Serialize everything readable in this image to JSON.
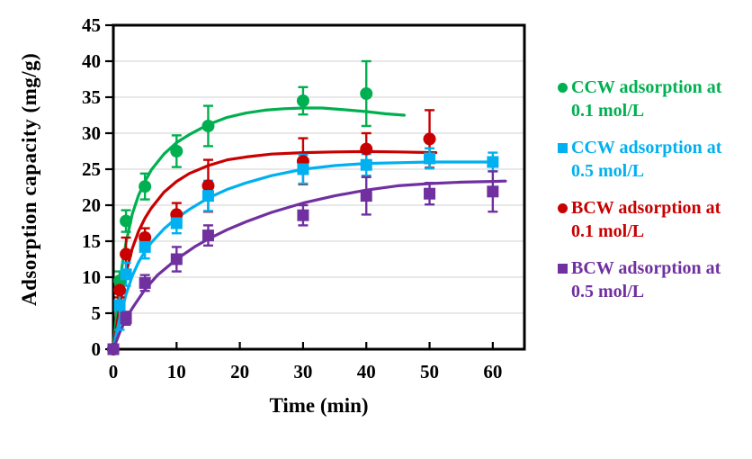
{
  "figure": {
    "background": "#FFFFFF",
    "axis_color": "#000000",
    "grid_color": "#D9D9D9"
  },
  "chart_data": {
    "type": "scatter",
    "title": "",
    "xlabel": "Time (min)",
    "ylabel": "Adsorption capacity (mg/g)",
    "xlim": [
      0,
      65
    ],
    "ylim": [
      0,
      45
    ],
    "x_ticks": [
      0,
      10,
      20,
      30,
      40,
      50,
      60
    ],
    "y_ticks": [
      0,
      5,
      10,
      15,
      20,
      25,
      30,
      35,
      40,
      45
    ],
    "grid": "horizontal-only",
    "legend_position": "right-outside",
    "error_bars": "vertical",
    "legend_order": [
      0,
      2,
      1,
      3
    ],
    "series": [
      {
        "name": "CCW adsorption at 0.1 mol/L",
        "legend_lines": [
          "CCW adsorption at",
          "0.1 mol/L"
        ],
        "color": "#00B050",
        "marker": "circle",
        "x": [
          0,
          1,
          2,
          5,
          10,
          15,
          30,
          40
        ],
        "y": [
          0,
          9.5,
          17.8,
          22.6,
          27.5,
          31.0,
          34.5,
          35.5
        ],
        "yerr": [
          0,
          1.3,
          1.5,
          1.8,
          2.2,
          2.8,
          1.9,
          4.5
        ],
        "fit": {
          "x": [
            0,
            0.5,
            1,
            1.5,
            2,
            3,
            4,
            5,
            6,
            8,
            10,
            12,
            15,
            18,
            21,
            24,
            27,
            30,
            33,
            36,
            40,
            43,
            46
          ],
          "y": [
            0,
            4.8,
            9.0,
            12.2,
            14.8,
            18.8,
            21.4,
            23.3,
            24.9,
            27.1,
            28.7,
            29.8,
            31.2,
            32.2,
            32.8,
            33.2,
            33.4,
            33.5,
            33.5,
            33.3,
            33.0,
            32.7,
            32.5
          ]
        }
      },
      {
        "name": "BCW adsorption at 0.1 mol/L",
        "legend_lines": [
          "BCW adsorption at",
          "0.1 mol/L"
        ],
        "color": "#C80000",
        "marker": "circle",
        "x": [
          0,
          1,
          2,
          5,
          10,
          15,
          30,
          40,
          50
        ],
        "y": [
          0,
          8.2,
          13.2,
          15.5,
          18.7,
          22.7,
          26.1,
          27.8,
          29.2
        ],
        "yerr": [
          0,
          1.0,
          2.3,
          1.3,
          1.6,
          3.6,
          3.2,
          2.2,
          4.0
        ],
        "fit": {
          "x": [
            0,
            0.5,
            1,
            1.5,
            2,
            3,
            4,
            5,
            6,
            8,
            10,
            12,
            15,
            18,
            21,
            25,
            30,
            35,
            40,
            45,
            51
          ],
          "y": [
            0,
            3.0,
            5.8,
            8.4,
            10.6,
            14.0,
            16.4,
            18.2,
            19.6,
            21.8,
            23.3,
            24.4,
            25.5,
            26.3,
            26.7,
            27.1,
            27.3,
            27.4,
            27.45,
            27.4,
            27.3
          ]
        }
      },
      {
        "name": "CCW adsorption at 0.5 mol/L",
        "legend_lines": [
          "CCW adsorption at",
          "0.5 mol/L"
        ],
        "color": "#00B0F0",
        "marker": "square",
        "x": [
          0,
          1,
          2,
          5,
          10,
          15,
          30,
          40,
          50,
          60
        ],
        "y": [
          0,
          6.1,
          10.4,
          14.2,
          17.5,
          21.3,
          25.0,
          25.6,
          26.5,
          26.0
        ],
        "yerr": [
          0,
          3.4,
          1.6,
          1.6,
          1.4,
          2.1,
          2.0,
          1.5,
          1.4,
          1.3
        ],
        "fit": {
          "x": [
            0,
            0.5,
            1,
            2,
            3,
            4,
            5,
            6,
            8,
            10,
            12,
            15,
            18,
            21,
            25,
            30,
            35,
            40,
            45,
            50,
            55,
            60
          ],
          "y": [
            0,
            2.2,
            4.2,
            7.6,
            10.2,
            12.1,
            13.6,
            14.8,
            16.7,
            18.2,
            19.4,
            21.0,
            22.2,
            23.1,
            24.1,
            25.0,
            25.5,
            25.8,
            25.9,
            26.0,
            26.0,
            26.0
          ]
        }
      },
      {
        "name": "BCW adsorption at 0.5 mol/L",
        "legend_lines": [
          "BCW adsorption at",
          "0.5 mol/L"
        ],
        "color": "#7030A0",
        "marker": "square",
        "x": [
          0,
          2,
          5,
          10,
          15,
          30,
          40,
          50,
          60
        ],
        "y": [
          0,
          4.3,
          9.2,
          12.5,
          15.8,
          18.6,
          21.3,
          21.6,
          21.9
        ],
        "yerr": [
          0,
          0.9,
          1.1,
          1.7,
          1.4,
          1.4,
          2.6,
          1.5,
          2.8
        ],
        "fit": {
          "x": [
            0,
            1,
            2,
            3,
            5,
            7,
            10,
            13,
            15,
            18,
            21,
            25,
            30,
            35,
            40,
            45,
            50,
            55,
            60,
            62
          ],
          "y": [
            0,
            2.3,
            4.2,
            5.7,
            8.3,
            10.3,
            12.5,
            14.3,
            15.3,
            16.6,
            17.7,
            19.0,
            20.3,
            21.3,
            22.1,
            22.7,
            23.0,
            23.2,
            23.3,
            23.35
          ]
        }
      }
    ]
  }
}
